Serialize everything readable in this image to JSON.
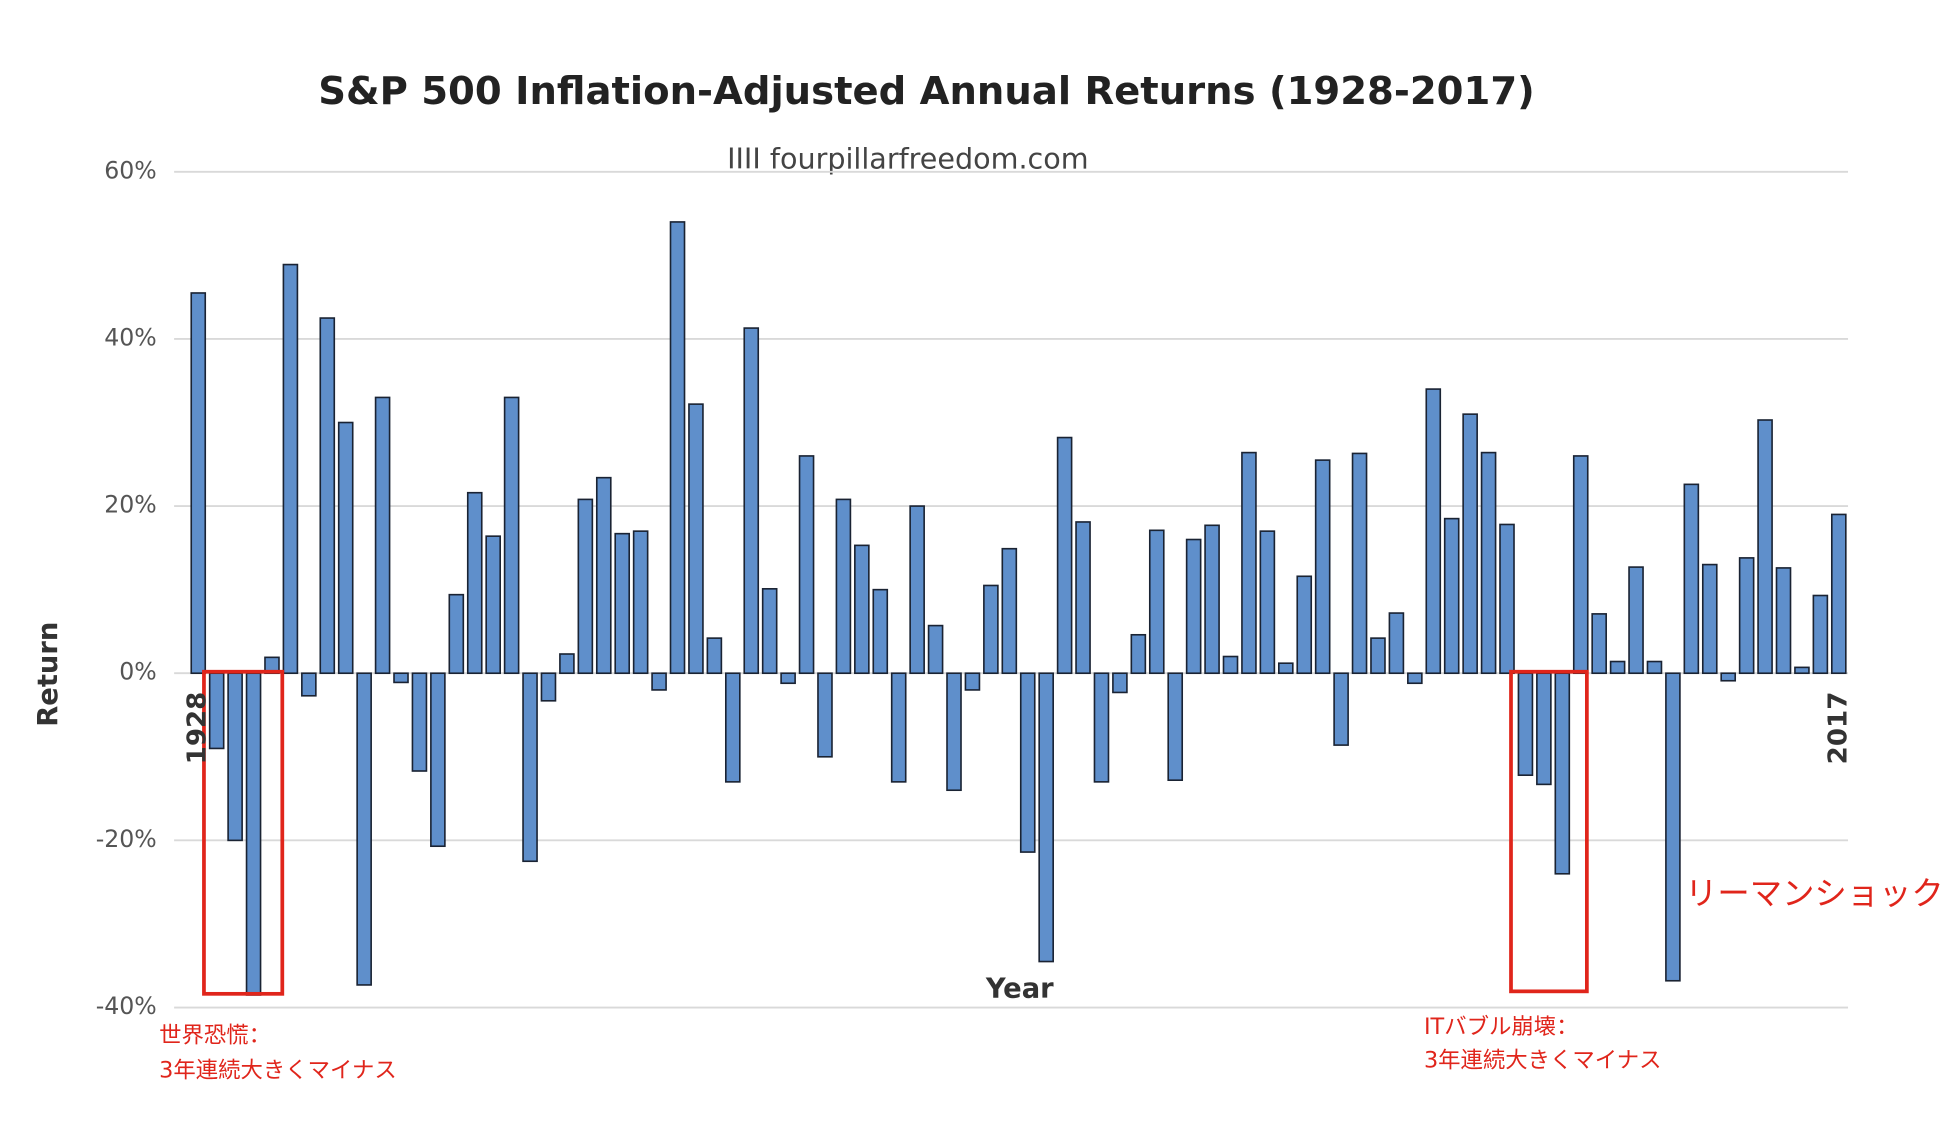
{
  "chart_data": {
    "type": "bar",
    "title": "S&P 500 Inflation-Adjusted Annual Returns (1928-2017)",
    "subtitle": "IIII fourpillarfreedom.com",
    "x_label": "Year",
    "y_label": "Return",
    "categories": [
      "1928",
      null,
      null,
      null,
      null,
      null,
      null,
      null,
      null,
      null,
      null,
      null,
      null,
      null,
      null,
      null,
      null,
      null,
      null,
      null,
      null,
      null,
      null,
      null,
      null,
      null,
      null,
      null,
      null,
      null,
      null,
      null,
      null,
      null,
      null,
      null,
      null,
      null,
      null,
      null,
      null,
      null,
      null,
      null,
      null,
      null,
      null,
      null,
      null,
      null,
      null,
      null,
      null,
      null,
      null,
      null,
      null,
      null,
      null,
      null,
      null,
      null,
      null,
      null,
      null,
      null,
      null,
      null,
      null,
      null,
      null,
      null,
      null,
      null,
      null,
      null,
      null,
      null,
      null,
      null,
      null,
      null,
      null,
      null,
      null,
      null,
      null,
      null,
      null,
      "2017"
    ],
    "values": [
      45.5,
      -9,
      -20,
      -38.5,
      1.9,
      48.9,
      -2.7,
      42.5,
      30,
      -37.3,
      33,
      -1.1,
      -11.7,
      -20.7,
      9.4,
      21.6,
      16.4,
      33,
      -22.5,
      -3.3,
      2.3,
      20.8,
      23.4,
      16.7,
      17,
      -2,
      54,
      32.2,
      4.2,
      -13,
      41.3,
      10.1,
      -1.2,
      26,
      -10,
      20.8,
      15.3,
      10,
      -13,
      20,
      5.7,
      -14,
      -2,
      10.5,
      14.9,
      -21.4,
      -34.5,
      28.2,
      18.1,
      -13,
      -2.3,
      4.6,
      17.1,
      -12.8,
      16,
      17.7,
      2,
      26.4,
      17,
      1.2,
      11.6,
      25.5,
      -8.6,
      26.3,
      4.2,
      7.2,
      -1.2,
      34,
      18.5,
      31,
      26.4,
      17.8,
      -12.2,
      -13.3,
      -24,
      26,
      7.1,
      1.4,
      12.7,
      1.4,
      -36.8,
      22.6,
      13,
      -0.9,
      13.8,
      30.3,
      12.6,
      0.7,
      9.3,
      19
    ],
    "color": "#5f8fcb",
    "ylim": [
      -40,
      60
    ],
    "yticks": [
      {
        "value": -40,
        "label": "-40%"
      },
      {
        "value": -20,
        "label": "-20%"
      },
      {
        "value": 0,
        "label": "0%"
      },
      {
        "value": 20,
        "label": "20%"
      },
      {
        "value": 40,
        "label": "40%"
      },
      {
        "value": 60,
        "label": "60%"
      }
    ],
    "grid": true,
    "annotations": [
      "世界恐慌：",
      "3年連続大きくマイナス",
      "ITバブル崩壊：",
      "3年連続大きくマイナス",
      "リーマンショック"
    ]
  }
}
